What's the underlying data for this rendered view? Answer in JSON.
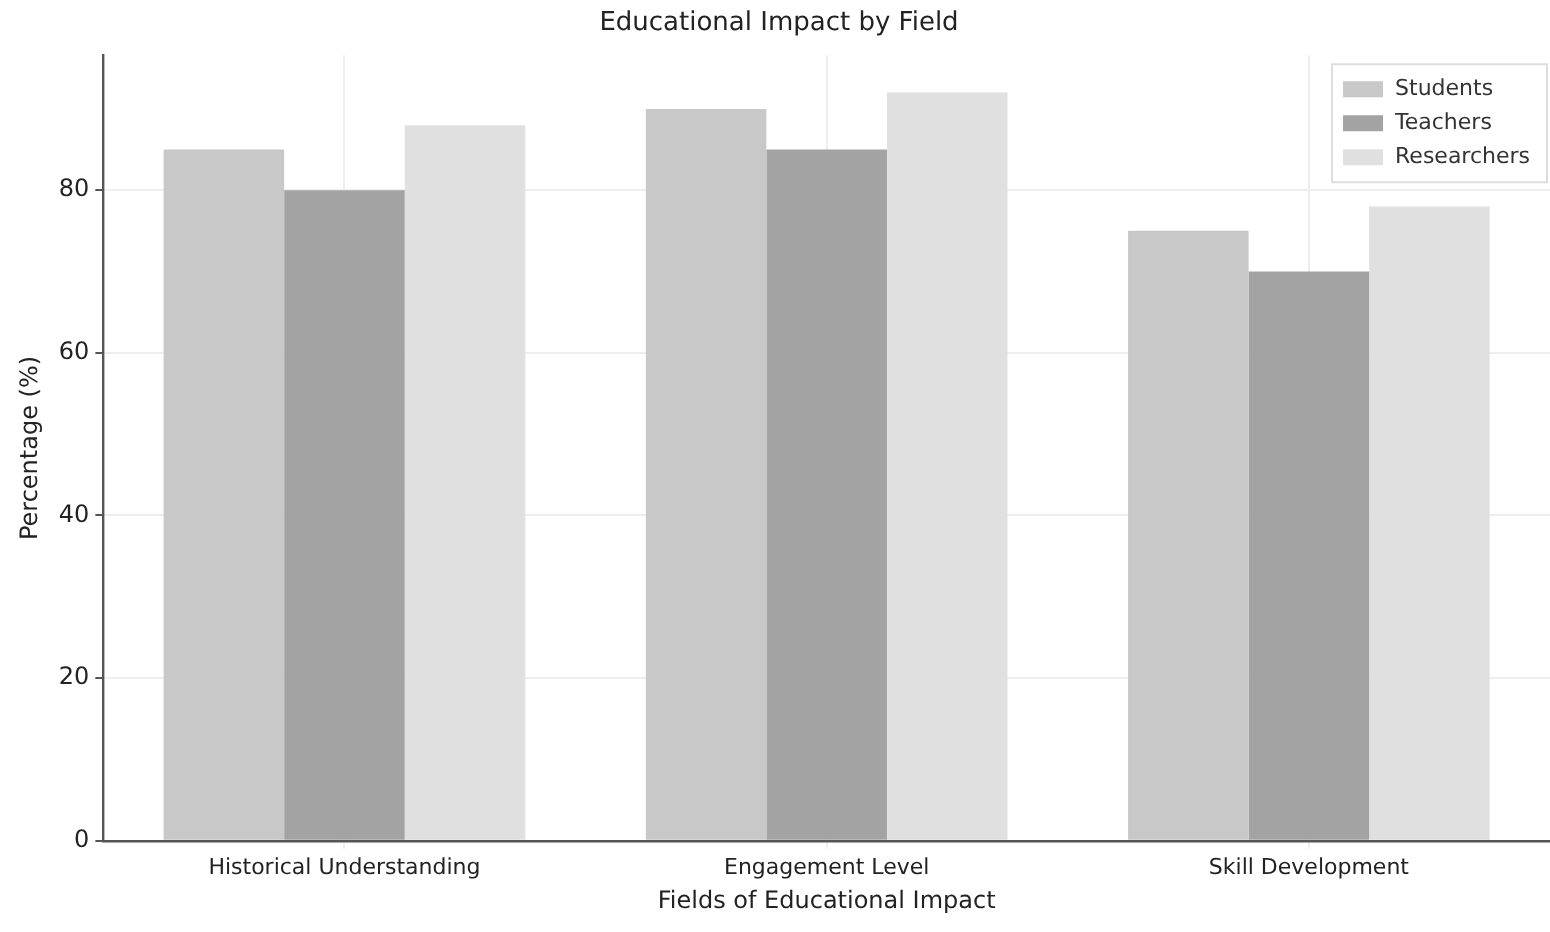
{
  "chart_data": {
    "type": "bar",
    "title": "Educational Impact by Field",
    "xlabel": "Fields of Educational Impact",
    "ylabel": "Percentage (%)",
    "categories": [
      "Historical Understanding",
      "Engagement Level",
      "Skill Development"
    ],
    "series": [
      {
        "name": "Students",
        "color": "#c8c8c8",
        "values": [
          85,
          90,
          75
        ]
      },
      {
        "name": "Teachers",
        "color": "#a3a3a3",
        "values": [
          80,
          85,
          70
        ]
      },
      {
        "name": "Researchers",
        "color": "#e0e0e0",
        "values": [
          88,
          92,
          78
        ]
      }
    ],
    "ylim": [
      0,
      96.6
    ],
    "yticks": [
      0,
      20,
      40,
      60,
      80
    ],
    "grid": true,
    "legend": "top right"
  }
}
